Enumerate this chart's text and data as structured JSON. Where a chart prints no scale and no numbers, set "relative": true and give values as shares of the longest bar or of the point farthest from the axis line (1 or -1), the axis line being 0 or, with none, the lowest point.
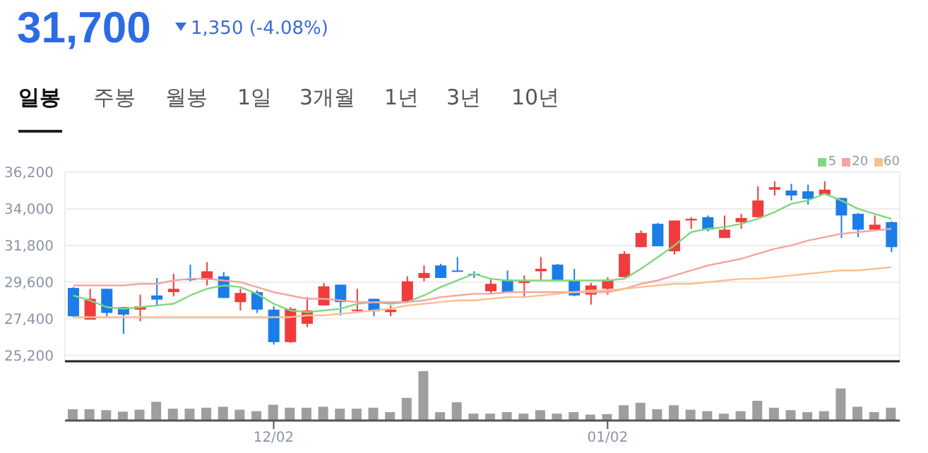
{
  "chart_data": [
    {
      "type": "candlestick",
      "title": "31,700",
      "subtitle": "1,350 (-4.08%)",
      "annotations": [
        "일봉",
        "주봉",
        "월봉",
        "1일",
        "3개월",
        "1년",
        "3년",
        "10년"
      ],
      "categories": [
        null,
        null,
        null,
        null,
        null,
        null,
        null,
        null,
        null,
        null,
        null,
        null,
        null,
        null,
        null,
        null,
        null,
        null,
        null,
        null,
        null,
        null,
        null,
        null,
        null,
        null,
        null,
        null,
        null,
        null,
        null,
        null,
        null,
        null,
        null,
        null,
        null,
        null,
        null,
        null,
        null,
        null,
        null,
        null,
        null,
        null,
        null,
        null,
        null,
        null
      ],
      "ohlc": [
        [
          29250,
          29300,
          27500,
          27550
        ],
        [
          27350,
          29200,
          27350,
          28600
        ],
        [
          29200,
          29200,
          27550,
          27750
        ],
        [
          28100,
          28100,
          26500,
          27650
        ],
        [
          27950,
          28850,
          27250,
          28150
        ],
        [
          28800,
          29850,
          28150,
          28550
        ],
        [
          29000,
          30100,
          28750,
          29200
        ],
        [
          29800,
          30650,
          29650,
          29750
        ],
        [
          29750,
          30800,
          29400,
          30250
        ],
        [
          29950,
          30200,
          28650,
          28650
        ],
        [
          28400,
          29200,
          27900,
          28950
        ],
        [
          29000,
          29100,
          27750,
          27950
        ],
        [
          27950,
          28150,
          25850,
          26000
        ],
        [
          26000,
          28100,
          25950,
          28000
        ],
        [
          27100,
          28700,
          26900,
          27900
        ],
        [
          28200,
          29550,
          28200,
          29350
        ],
        [
          29450,
          29450,
          27600,
          28400
        ],
        [
          27900,
          29200,
          27750,
          27950
        ],
        [
          28600,
          28600,
          27550,
          27850
        ],
        [
          27800,
          28200,
          27550,
          27950
        ],
        [
          28450,
          29950,
          28450,
          29650
        ],
        [
          29850,
          30600,
          29650,
          30150
        ],
        [
          30600,
          30700,
          29850,
          29850
        ],
        [
          30300,
          31100,
          30250,
          30250
        ],
        [
          30100,
          30250,
          29850,
          30050
        ],
        [
          29050,
          29800,
          28950,
          29500
        ],
        [
          29750,
          30300,
          29000,
          29000
        ],
        [
          29550,
          30000,
          28750,
          29650
        ],
        [
          30250,
          31100,
          29700,
          30400
        ],
        [
          30650,
          30700,
          29700,
          29700
        ],
        [
          29700,
          30400,
          28750,
          28800
        ],
        [
          28850,
          29550,
          28250,
          29400
        ],
        [
          29200,
          29900,
          28850,
          29750
        ],
        [
          29900,
          31450,
          29900,
          31300
        ],
        [
          31700,
          32700,
          31700,
          32550
        ],
        [
          33100,
          33150,
          31750,
          31750
        ],
        [
          31450,
          33300,
          31250,
          33300
        ],
        [
          33300,
          33500,
          32800,
          33400
        ],
        [
          33500,
          33600,
          32650,
          32750
        ],
        [
          32250,
          33600,
          32250,
          32750
        ],
        [
          33200,
          33700,
          32800,
          33450
        ],
        [
          33500,
          35350,
          33500,
          34500
        ],
        [
          35150,
          35650,
          34800,
          35300
        ],
        [
          35100,
          35500,
          34500,
          34800
        ],
        [
          35050,
          35450,
          34250,
          34600
        ],
        [
          34850,
          35650,
          34850,
          35150
        ],
        [
          34650,
          34650,
          32250,
          33600
        ],
        [
          33700,
          33750,
          32300,
          32750
        ],
        [
          32750,
          33600,
          32750,
          33050
        ],
        [
          33200,
          33250,
          31400,
          31700
        ]
      ],
      "colors": [
        "#1a7de8",
        "#f03c3c",
        "#1a7de8",
        "#1a7de8",
        "#f03c3c",
        "#1a7de8",
        "#f03c3c",
        "#1a7de8",
        "#f03c3c",
        "#1a7de8",
        "#f03c3c",
        "#1a7de8",
        "#1a7de8",
        "#f03c3c",
        "#f03c3c",
        "#f03c3c",
        "#1a7de8",
        "#f03c3c",
        "#1a7de8",
        "#f03c3c",
        "#f03c3c",
        "#f03c3c",
        "#1a7de8",
        "#1a7de8",
        "#1a7de8",
        "#f03c3c",
        "#1a7de8",
        "#f03c3c",
        "#f03c3c",
        "#1a7de8",
        "#1a7de8",
        "#f03c3c",
        "#f03c3c",
        "#f03c3c",
        "#f03c3c",
        "#1a7de8",
        "#f03c3c",
        "#f03c3c",
        "#1a7de8",
        "#f03c3c",
        "#f03c3c",
        "#f03c3c",
        "#f03c3c",
        "#1a7de8",
        "#1a7de8",
        "#f03c3c",
        "#1a7de8",
        "#1a7de8",
        "#f03c3c",
        "#1a7de8"
      ],
      "series": [
        {
          "name": "5",
          "type": "line",
          "color": "#7fd87f",
          "values": [
            28800,
            28500,
            28100,
            28000,
            28100,
            28200,
            28300,
            28800,
            29200,
            29400,
            29300,
            28900,
            28300,
            27900,
            27800,
            27900,
            28000,
            28300,
            28400,
            28300,
            28400,
            28800,
            29300,
            29700,
            30100,
            29800,
            29700,
            29700,
            29700,
            29700,
            29700,
            29700,
            29700,
            29800,
            30400,
            31100,
            31800,
            32600,
            32800,
            32900,
            33100,
            33400,
            33800,
            34300,
            34500,
            34900,
            34500,
            34000,
            33700,
            33400
          ]
        },
        {
          "name": "20",
          "type": "line",
          "color": "#f5a3a3",
          "values": [
            29400,
            29400,
            29400,
            29400,
            29500,
            29500,
            29700,
            29800,
            29800,
            29700,
            29600,
            29300,
            29000,
            28800,
            28600,
            28600,
            28500,
            28400,
            28400,
            28400,
            28400,
            28500,
            28700,
            28800,
            28900,
            28900,
            29000,
            29000,
            29000,
            29000,
            29000,
            29000,
            29000,
            29200,
            29500,
            29700,
            30000,
            30300,
            30600,
            30800,
            31000,
            31300,
            31600,
            31800,
            32100,
            32300,
            32500,
            32600,
            32700,
            32800
          ]
        },
        {
          "name": "60",
          "type": "line",
          "color": "#f8c08e",
          "values": [
            27500,
            27500,
            27500,
            27500,
            27500,
            27500,
            27500,
            27500,
            27500,
            27500,
            27500,
            27500,
            27500,
            27500,
            27600,
            27600,
            27700,
            27800,
            27900,
            28000,
            28200,
            28300,
            28400,
            28500,
            28500,
            28600,
            28700,
            28700,
            28800,
            28900,
            29000,
            29100,
            29100,
            29200,
            29300,
            29400,
            29500,
            29500,
            29600,
            29700,
            29800,
            29800,
            29900,
            30000,
            30100,
            30200,
            30300,
            30300,
            30400,
            30500
          ]
        }
      ],
      "ylim": [
        24850,
        36200
      ],
      "yticks": [
        {
          "value": 25200,
          "label": "25,200"
        },
        {
          "value": 27400,
          "label": "27,400"
        },
        {
          "value": 29600,
          "label": "29,600"
        },
        {
          "value": 31800,
          "label": "31,800"
        },
        {
          "value": 34000,
          "label": "34,000"
        },
        {
          "value": 36200,
          "label": "36,200"
        }
      ],
      "grid": true,
      "legend": "top right",
      "tick_labels": "y"
    },
    {
      "type": "bar",
      "relative": true,
      "color": "#9e9e9e",
      "categories": [
        null,
        null,
        null,
        null,
        null,
        null,
        null,
        null,
        null,
        null,
        null,
        null,
        "12/02",
        null,
        null,
        null,
        null,
        null,
        null,
        null,
        null,
        null,
        null,
        null,
        null,
        null,
        null,
        null,
        null,
        null,
        null,
        null,
        "01/02",
        null,
        null,
        null,
        null,
        null,
        null,
        null,
        null,
        null,
        null,
        null,
        null,
        null,
        null,
        null,
        null,
        null
      ],
      "values": [
        0.23,
        0.23,
        0.21,
        0.18,
        0.22,
        0.38,
        0.24,
        0.24,
        0.26,
        0.28,
        0.22,
        0.19,
        0.32,
        0.26,
        0.26,
        0.28,
        0.24,
        0.24,
        0.26,
        0.17,
        0.46,
        1,
        0.17,
        0.37,
        0.14,
        0.14,
        0.17,
        0.14,
        0.21,
        0.14,
        0.17,
        0.12,
        0.13,
        0.31,
        0.36,
        0.23,
        0.31,
        0.22,
        0.19,
        0.14,
        0.19,
        0.4,
        0.26,
        0.21,
        0.17,
        0.19,
        0.65,
        0.28,
        0.17,
        0.26
      ],
      "tick_labels": "x"
    }
  ]
}
